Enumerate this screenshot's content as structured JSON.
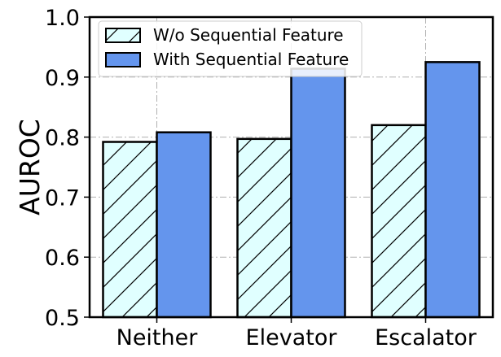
{
  "chart_data": {
    "type": "bar",
    "categories": [
      "Neither",
      "Elevator",
      "Escalator"
    ],
    "series": [
      {
        "name": "W/o Sequential Feature",
        "values": [
          0.792,
          0.797,
          0.82
        ],
        "fill": "#e0ffff",
        "hatch": "/"
      },
      {
        "name": "With Sequential Feature",
        "values": [
          0.808,
          0.914,
          0.925
        ],
        "fill": "#6495ed",
        "hatch": ""
      }
    ],
    "title": "",
    "xlabel": "",
    "ylabel": "AUROC",
    "ylim": [
      0.5,
      1.0
    ],
    "yticks": [
      "0.5",
      "0.6",
      "0.7",
      "0.8",
      "0.9",
      "1.0"
    ],
    "grid": true,
    "grid_style": "dashdot",
    "legend": "top-left",
    "colors": {
      "edge": "#000000",
      "grid": "#b0b0b0"
    }
  }
}
